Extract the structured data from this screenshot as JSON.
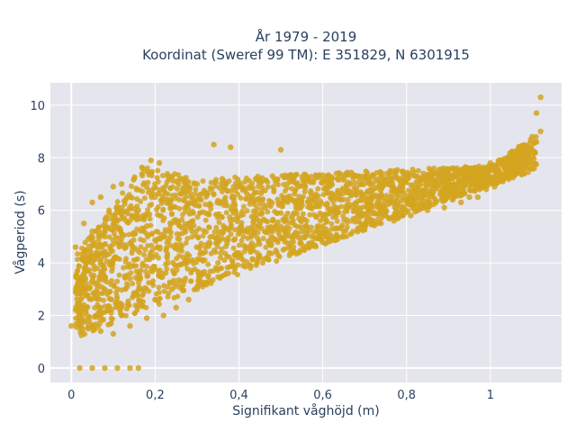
{
  "chart_data": {
    "type": "scatter",
    "title_lines": [
      "År 1979 - 2019",
      "Koordinat (Sweref 99 TM): E 351829, N 6301915"
    ],
    "xlabel": "Signifikant våghöjd (m)",
    "ylabel": "Vågperiod (s)",
    "xlim": [
      -0.05,
      1.17
    ],
    "ylim": [
      -0.55,
      10.85
    ],
    "x_ticks": [
      0,
      0.2,
      0.4,
      0.6,
      0.8,
      1
    ],
    "x_tick_labels": [
      "0",
      "0,2",
      "0,4",
      "0,6",
      "0,8",
      "1"
    ],
    "y_ticks": [
      0,
      2,
      4,
      6,
      8,
      10
    ],
    "y_tick_labels": [
      "0",
      "2",
      "4",
      "6",
      "8",
      "10"
    ],
    "grid": true,
    "legend": "none",
    "marker_color": "#D4A520",
    "background_color": "#E5E5EE",
    "series": [
      {
        "points": [
          [
            0.0,
            1.6
          ],
          [
            0.01,
            2.2
          ],
          [
            0.01,
            4.6
          ],
          [
            0.02,
            2.0
          ],
          [
            0.02,
            3.1
          ],
          [
            0.03,
            2.4
          ],
          [
            0.03,
            5.5
          ],
          [
            0.04,
            1.5
          ],
          [
            0.04,
            3.7
          ],
          [
            0.05,
            5.2
          ],
          [
            0.05,
            6.3
          ],
          [
            0.06,
            2.9
          ],
          [
            0.06,
            4.4
          ],
          [
            0.07,
            1.4
          ],
          [
            0.07,
            6.5
          ],
          [
            0.08,
            3.4
          ],
          [
            0.08,
            5.0
          ],
          [
            0.09,
            2.2
          ],
          [
            0.09,
            6.0
          ],
          [
            0.1,
            1.3
          ],
          [
            0.1,
            4.1
          ],
          [
            0.1,
            6.9
          ],
          [
            0.11,
            3.0
          ],
          [
            0.11,
            5.6
          ],
          [
            0.12,
            2.0
          ],
          [
            0.12,
            7.0
          ],
          [
            0.13,
            4.6
          ],
          [
            0.13,
            6.4
          ],
          [
            0.14,
            1.6
          ],
          [
            0.14,
            3.4
          ],
          [
            0.15,
            5.1
          ],
          [
            0.15,
            7.2
          ],
          [
            0.16,
            2.4
          ],
          [
            0.16,
            6.0
          ],
          [
            0.17,
            3.9
          ],
          [
            0.17,
            7.6
          ],
          [
            0.18,
            1.9
          ],
          [
            0.18,
            5.4
          ],
          [
            0.19,
            4.3
          ],
          [
            0.19,
            7.9
          ],
          [
            0.2,
            2.6
          ],
          [
            0.2,
            6.5
          ],
          [
            0.21,
            3.5
          ],
          [
            0.21,
            7.8
          ],
          [
            0.22,
            2.0
          ],
          [
            0.22,
            5.0
          ],
          [
            0.23,
            4.0
          ],
          [
            0.23,
            7.3
          ],
          [
            0.24,
            3.0
          ],
          [
            0.24,
            6.1
          ],
          [
            0.25,
            2.3
          ],
          [
            0.25,
            7.1
          ],
          [
            0.26,
            4.7
          ],
          [
            0.27,
            3.3
          ],
          [
            0.27,
            6.7
          ],
          [
            0.28,
            2.6
          ],
          [
            0.28,
            5.5
          ],
          [
            0.29,
            4.1
          ],
          [
            0.3,
            3.0
          ],
          [
            0.3,
            7.0
          ],
          [
            0.31,
            3.6
          ],
          [
            0.32,
            5.9
          ],
          [
            0.33,
            3.3
          ],
          [
            0.34,
            6.6
          ],
          [
            0.35,
            4.0
          ],
          [
            0.36,
            7.2
          ],
          [
            0.37,
            3.6
          ],
          [
            0.38,
            5.6
          ],
          [
            0.39,
            4.3
          ],
          [
            0.4,
            6.9
          ],
          [
            0.41,
            3.9
          ],
          [
            0.42,
            5.3
          ],
          [
            0.43,
            4.6
          ],
          [
            0.44,
            7.2
          ],
          [
            0.45,
            4.2
          ],
          [
            0.46,
            6.2
          ],
          [
            0.47,
            4.8
          ],
          [
            0.48,
            7.3
          ],
          [
            0.49,
            4.4
          ],
          [
            0.5,
            5.9
          ],
          [
            0.51,
            4.8
          ],
          [
            0.52,
            7.3
          ],
          [
            0.53,
            4.6
          ],
          [
            0.54,
            6.3
          ],
          [
            0.55,
            5.2
          ],
          [
            0.56,
            7.3
          ],
          [
            0.57,
            4.7
          ],
          [
            0.58,
            6.5
          ],
          [
            0.59,
            5.4
          ],
          [
            0.6,
            7.2
          ],
          [
            0.61,
            5.0
          ],
          [
            0.62,
            6.0
          ],
          [
            0.63,
            5.3
          ],
          [
            0.64,
            7.4
          ],
          [
            0.65,
            5.2
          ],
          [
            0.66,
            6.4
          ],
          [
            0.67,
            5.6
          ],
          [
            0.68,
            7.3
          ],
          [
            0.69,
            5.3
          ],
          [
            0.7,
            6.6
          ],
          [
            0.71,
            5.7
          ],
          [
            0.72,
            7.3
          ],
          [
            0.73,
            5.5
          ],
          [
            0.74,
            6.6
          ],
          [
            0.75,
            5.8
          ],
          [
            0.76,
            7.4
          ],
          [
            0.77,
            5.6
          ],
          [
            0.78,
            6.7
          ],
          [
            0.79,
            6.0
          ],
          [
            0.8,
            7.3
          ],
          [
            0.81,
            5.8
          ],
          [
            0.82,
            6.8
          ],
          [
            0.83,
            6.1
          ],
          [
            0.84,
            7.4
          ],
          [
            0.85,
            6.0
          ],
          [
            0.86,
            7.0
          ],
          [
            0.87,
            6.3
          ],
          [
            0.88,
            7.4
          ],
          [
            0.89,
            6.1
          ],
          [
            0.9,
            7.1
          ],
          [
            0.91,
            6.4
          ],
          [
            0.92,
            7.6
          ],
          [
            0.93,
            6.3
          ],
          [
            0.94,
            7.3
          ],
          [
            0.95,
            6.5
          ],
          [
            0.96,
            7.6
          ],
          [
            0.97,
            6.5
          ],
          [
            0.98,
            7.5
          ],
          [
            0.99,
            6.8
          ],
          [
            1.0,
            7.8
          ],
          [
            1.01,
            6.9
          ],
          [
            1.02,
            7.9
          ],
          [
            1.03,
            7.1
          ],
          [
            1.04,
            8.0
          ],
          [
            1.05,
            7.3
          ],
          [
            1.06,
            8.2
          ],
          [
            1.07,
            7.6
          ],
          [
            1.08,
            8.4
          ],
          [
            1.09,
            8.0
          ],
          [
            1.1,
            8.8
          ],
          [
            1.11,
            8.6
          ],
          [
            1.12,
            9.0
          ],
          [
            1.11,
            9.7
          ],
          [
            1.12,
            10.3
          ],
          [
            0.38,
            8.4
          ],
          [
            0.5,
            8.3
          ],
          [
            0.34,
            8.5
          ],
          [
            0.02,
            0.0
          ],
          [
            0.05,
            0.0
          ],
          [
            0.08,
            0.0
          ],
          [
            0.11,
            0.0
          ],
          [
            0.14,
            0.0
          ],
          [
            0.16,
            0.0
          ]
        ]
      }
    ]
  }
}
